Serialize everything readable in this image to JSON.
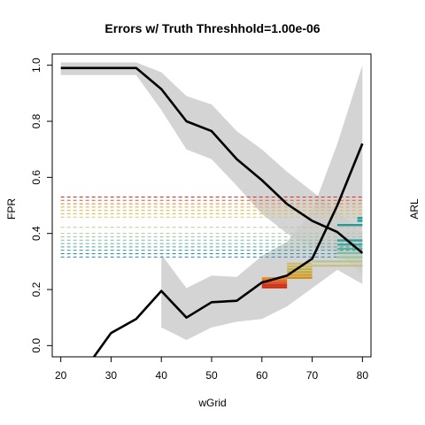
{
  "chart_data": {
    "type": "line",
    "title": "Errors w/ Truth Threshhold=1.00e-06",
    "xlabel": "wGrid",
    "ylabel_left": "FPR",
    "ylabel_right": "ARL",
    "x_ticks": [
      "20",
      "30",
      "40",
      "50",
      "60",
      "70",
      "80"
    ],
    "y_ticks": [
      "0.0",
      "0.2",
      "0.4",
      "0.6",
      "0.8",
      "1.0"
    ],
    "xlim": [
      18.3,
      81.7
    ],
    "ylim": [
      -0.04,
      1.04
    ],
    "grid": false,
    "x": [
      20,
      25,
      30,
      35,
      40,
      45,
      50,
      55,
      60,
      65,
      70,
      75,
      80
    ],
    "fpr": {
      "mean": [
        0.99,
        0.99,
        0.99,
        0.99,
        0.915,
        0.8,
        0.765,
        0.665,
        0.59,
        0.505,
        0.445,
        0.405,
        0.33
      ],
      "upper": [
        1.01,
        1.01,
        1.01,
        1.01,
        0.975,
        0.89,
        0.86,
        0.765,
        0.7,
        0.62,
        0.55,
        0.48,
        0.405
      ],
      "lower": [
        0.965,
        0.965,
        0.965,
        0.965,
        0.84,
        0.7,
        0.665,
        0.57,
        0.47,
        0.4,
        0.35,
        0.33,
        0.255
      ],
      "color": "#000000",
      "band_color": "#cccccc"
    },
    "arl": {
      "x": [
        20,
        25,
        30,
        35,
        40,
        45,
        50,
        55,
        60,
        65,
        70,
        75,
        80
      ],
      "mean": [
        -0.16,
        -0.08,
        0.045,
        0.095,
        0.195,
        0.1,
        0.155,
        0.16,
        0.225,
        0.25,
        0.31,
        0.5,
        0.72
      ],
      "upper": [
        null,
        null,
        null,
        null,
        0.325,
        0.205,
        0.25,
        0.245,
        0.32,
        0.37,
        0.48,
        0.72,
        1.0
      ],
      "lower": [
        null,
        null,
        null,
        null,
        0.065,
        0.02,
        0.065,
        0.085,
        0.095,
        0.14,
        0.205,
        0.27,
        0.22
      ],
      "color": "#000000",
      "band_color": "#cccccc"
    },
    "reference_lines": {
      "x_start": 20,
      "x_end": 80,
      "style": "dashed",
      "lines": [
        {
          "y": 0.53,
          "color": "#d7301f"
        },
        {
          "y": 0.518,
          "color": "#e0592a"
        },
        {
          "y": 0.506,
          "color": "#e87d32"
        },
        {
          "y": 0.494,
          "color": "#eea03a"
        },
        {
          "y": 0.482,
          "color": "#e6b23f"
        },
        {
          "y": 0.47,
          "color": "#d8bd4a"
        },
        {
          "y": 0.458,
          "color": "#d6c66a"
        },
        {
          "y": 0.422,
          "color": "#c7c493"
        },
        {
          "y": 0.4,
          "color": "#b0c7a4"
        },
        {
          "y": 0.388,
          "color": "#9ec6a0"
        },
        {
          "y": 0.376,
          "color": "#7fbf9a"
        },
        {
          "y": 0.364,
          "color": "#5db39a"
        },
        {
          "y": 0.352,
          "color": "#3fa79c"
        },
        {
          "y": 0.34,
          "color": "#2a9aa3"
        },
        {
          "y": 0.328,
          "color": "#258fa8"
        },
        {
          "y": 0.316,
          "color": "#2386ad"
        }
      ]
    },
    "marker_segments": [
      {
        "x1": 60,
        "x2": 65,
        "y": 0.208,
        "color": "#cc2200"
      },
      {
        "x1": 60,
        "x2": 65,
        "y": 0.216,
        "color": "#d0301a"
      },
      {
        "x1": 60,
        "x2": 65,
        "y": 0.224,
        "color": "#d84a1a"
      },
      {
        "x1": 60,
        "x2": 65,
        "y": 0.232,
        "color": "#e06a20"
      },
      {
        "x1": 60,
        "x2": 65,
        "y": 0.24,
        "color": "#e88a28"
      },
      {
        "x1": 65,
        "x2": 70,
        "y": 0.242,
        "color": "#d08a10"
      },
      {
        "x1": 65,
        "x2": 70,
        "y": 0.252,
        "color": "#d89a18"
      },
      {
        "x1": 65,
        "x2": 70,
        "y": 0.262,
        "color": "#c8a830"
      },
      {
        "x1": 65,
        "x2": 70,
        "y": 0.272,
        "color": "#c0b048"
      },
      {
        "x1": 65,
        "x2": 70,
        "y": 0.282,
        "color": "#c8b860"
      },
      {
        "x1": 65,
        "x2": 70,
        "y": 0.292,
        "color": "#d0bc70"
      },
      {
        "x1": 70,
        "x2": 80,
        "y": 0.285,
        "color": "#c8c080"
      },
      {
        "x1": 70,
        "x2": 80,
        "y": 0.3,
        "color": "#b8c490"
      },
      {
        "x1": 75,
        "x2": 80,
        "y": 0.315,
        "color": "#9cc89c"
      },
      {
        "x1": 75,
        "x2": 80,
        "y": 0.33,
        "color": "#7cc09c"
      },
      {
        "x1": 75,
        "x2": 80,
        "y": 0.345,
        "color": "#5cb49c"
      },
      {
        "x1": 75,
        "x2": 80,
        "y": 0.36,
        "color": "#40a89c"
      },
      {
        "x1": 75,
        "x2": 80,
        "y": 0.375,
        "color": "#30a0a0"
      },
      {
        "x1": 75,
        "x2": 80,
        "y": 0.43,
        "color": "#22999a"
      },
      {
        "x1": 79,
        "x2": 80,
        "y": 0.445,
        "color": "#1a9a9a"
      },
      {
        "x1": 79,
        "x2": 80,
        "y": 0.455,
        "color": "#139a9a"
      }
    ]
  }
}
